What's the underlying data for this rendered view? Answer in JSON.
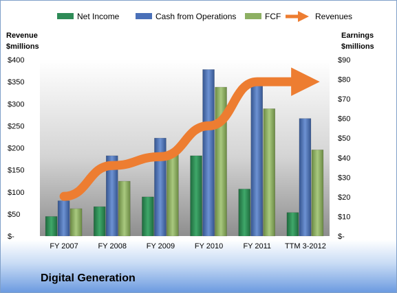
{
  "chart_data": {
    "type": "bar",
    "categories": [
      "FY 2007",
      "FY 2008",
      "FY 2009",
      "FY 2010",
      "FY 2011",
      "TTM 3-2012"
    ],
    "series": [
      {
        "name": "Net Income",
        "axis": "right",
        "values": [
          10,
          15,
          20,
          41,
          24,
          12
        ],
        "color": "#2e8b57"
      },
      {
        "name": "Cash from Operations",
        "axis": "right",
        "values": [
          18,
          41,
          50,
          85,
          77,
          60
        ],
        "color": "#4a70b8"
      },
      {
        "name": "FCF",
        "axis": "right",
        "values": [
          14,
          28,
          43,
          76,
          65,
          44
        ],
        "color": "#8db063"
      }
    ],
    "revenues": {
      "name": "Revenues",
      "axis": "left",
      "values": [
        90,
        160,
        180,
        250,
        350,
        350
      ],
      "color": "#ed7d31"
    },
    "ylabel_left": "Revenue $millions",
    "ylabel_right": "Earnings $millions",
    "ylim_left": [
      0,
      400
    ],
    "ylim_right": [
      0,
      90
    ],
    "left_ticks": [
      "$-",
      "$50",
      "$100",
      "$150",
      "$200",
      "$250",
      "$300",
      "$350",
      "$400"
    ],
    "right_ticks": [
      "$-",
      "$10",
      "$20",
      "$30",
      "$40",
      "$50",
      "$60",
      "$70",
      "$80",
      "$90"
    ],
    "legend_position": "top",
    "grid": false
  },
  "company_label": "Digital Generation"
}
